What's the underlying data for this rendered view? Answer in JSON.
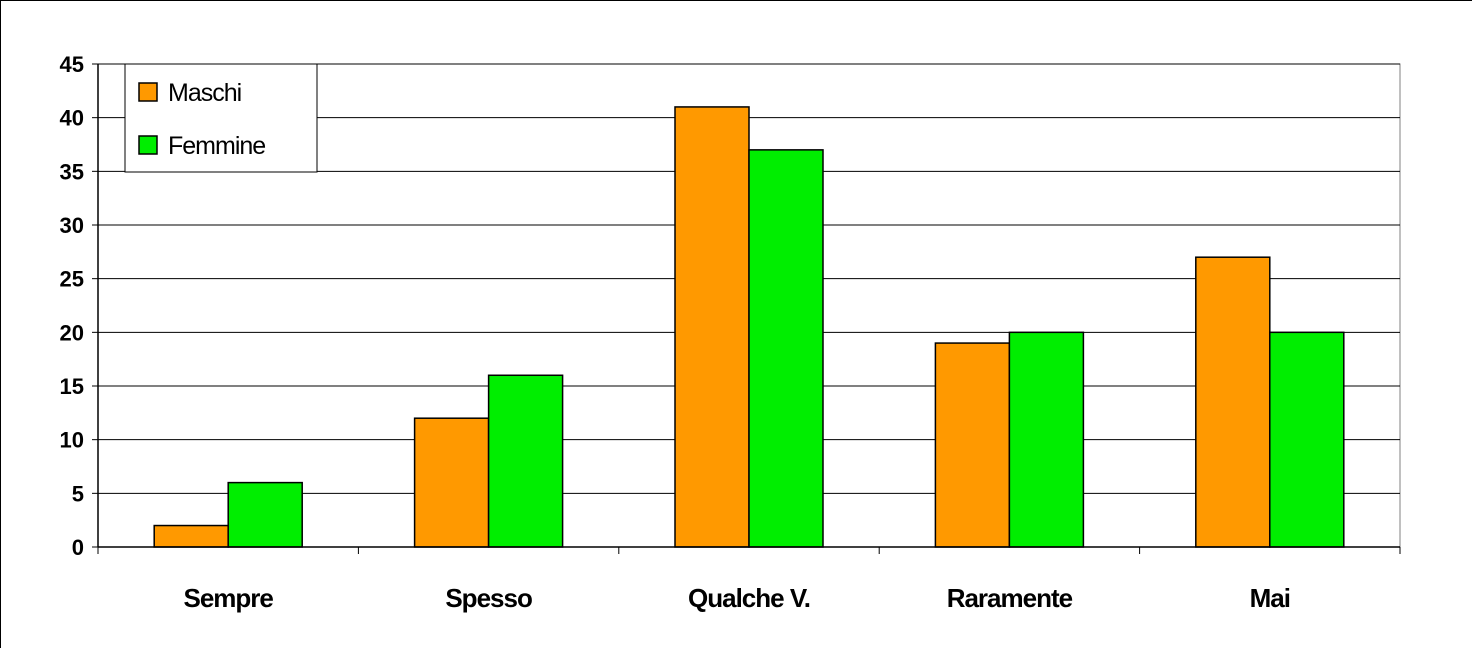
{
  "chart_data": {
    "type": "bar",
    "title": "",
    "xlabel": "",
    "ylabel": "",
    "categories": [
      "Sempre",
      "Spesso",
      "Qualche V.",
      "Raramente",
      "Mai"
    ],
    "series": [
      {
        "name": "Maschi",
        "values": [
          2,
          12,
          41,
          19,
          27
        ],
        "color": "#FF9900"
      },
      {
        "name": "Femmine",
        "values": [
          6,
          16,
          37,
          20,
          20
        ],
        "color": "#00EE00"
      }
    ],
    "ylim": [
      0,
      45
    ],
    "yticks": [
      "0",
      "5",
      "10",
      "15",
      "20",
      "25",
      "30",
      "35",
      "40",
      "45"
    ],
    "grid": true,
    "legend_position": "top-left"
  }
}
